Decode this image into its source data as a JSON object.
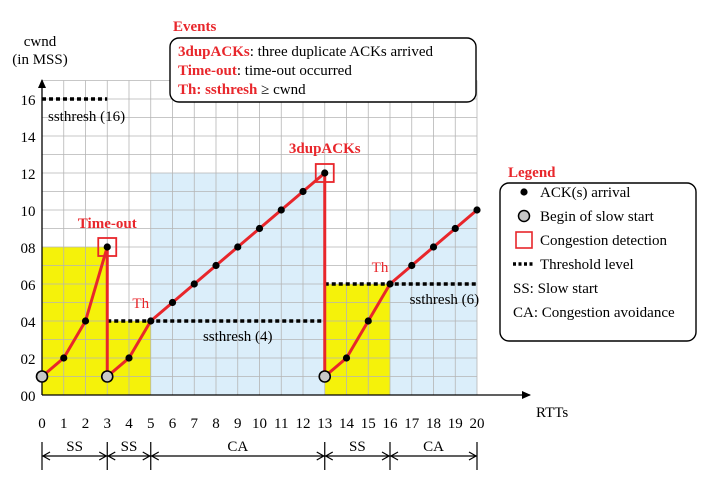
{
  "chart_data": {
    "type": "line",
    "ylabel_line1": "cwnd",
    "ylabel_line2": "(in MSS)",
    "xlabel": "RTTs",
    "x_ticks": [
      "0",
      "1",
      "2",
      "3",
      "4",
      "5",
      "6",
      "7",
      "8",
      "9",
      "10",
      "11",
      "12",
      "13",
      "14",
      "15",
      "16",
      "17",
      "18",
      "19",
      "20"
    ],
    "y_ticks": [
      {
        "label": "00",
        "value": 0
      },
      {
        "label": "02",
        "value": 2
      },
      {
        "label": "04",
        "value": 4
      },
      {
        "label": "06",
        "value": 6
      },
      {
        "label": "08",
        "value": 8
      },
      {
        "label": "10",
        "value": 10
      },
      {
        "label": "12",
        "value": 12
      },
      {
        "label": "14",
        "value": 14
      },
      {
        "label": "16",
        "value": 16
      }
    ],
    "xlim": [
      0,
      20
    ],
    "ylim": [
      0,
      17
    ],
    "grid": true,
    "cwnd_points": [
      [
        0,
        1
      ],
      [
        1,
        2
      ],
      [
        2,
        4
      ],
      [
        3,
        8
      ],
      [
        3,
        1
      ],
      [
        4,
        2
      ],
      [
        5,
        4
      ],
      [
        6,
        5
      ],
      [
        7,
        6
      ],
      [
        8,
        7
      ],
      [
        9,
        8
      ],
      [
        10,
        9
      ],
      [
        11,
        10
      ],
      [
        12,
        11
      ],
      [
        13,
        12
      ],
      [
        13,
        1
      ],
      [
        14,
        2
      ],
      [
        15,
        4
      ],
      [
        16,
        6
      ],
      [
        17,
        7
      ],
      [
        18,
        8
      ],
      [
        19,
        9
      ],
      [
        20,
        10
      ]
    ],
    "slow_start_begins": [
      [
        0,
        1
      ],
      [
        3,
        1
      ],
      [
        13,
        1
      ]
    ],
    "congestion_points": [
      [
        3,
        8
      ],
      [
        13,
        12
      ]
    ],
    "phase_regions": [
      {
        "kind": "SS",
        "x0": 0,
        "x1": 3,
        "y1": 8
      },
      {
        "kind": "SS",
        "x0": 3,
        "x1": 5,
        "y1": 4
      },
      {
        "kind": "CA",
        "x0": 5,
        "x1": 13,
        "y1": 12
      },
      {
        "kind": "SS",
        "x0": 13,
        "x1": 16,
        "y1": 6
      },
      {
        "kind": "CA",
        "x0": 16,
        "x1": 20,
        "y1": 10
      }
    ],
    "thresholds": [
      {
        "x0": 0,
        "x1": 3,
        "y": 16,
        "label": "ssthresh (16)"
      },
      {
        "x0": 3,
        "x1": 13,
        "y": 4,
        "label": "ssthresh (4)"
      },
      {
        "x0": 13,
        "x1": 20,
        "y": 6,
        "label": "ssthresh (6)"
      }
    ],
    "annotations": [
      {
        "text": "Time-out",
        "x": 3,
        "y": 8
      },
      {
        "text": "3dupACKs",
        "x": 13,
        "y": 12
      },
      {
        "text": "Th",
        "x": 5,
        "y": 4
      },
      {
        "text": "Th",
        "x": 16,
        "y": 6
      }
    ],
    "phases": [
      {
        "label": "SS",
        "x0": 0,
        "x1": 3
      },
      {
        "label": "SS",
        "x0": 3,
        "x1": 5
      },
      {
        "label": "CA",
        "x0": 5,
        "x1": 13
      },
      {
        "label": "SS",
        "x0": 13,
        "x1": 16
      },
      {
        "label": "CA",
        "x0": 16,
        "x1": 20
      }
    ]
  },
  "events": {
    "title": "Events",
    "items": [
      {
        "key": "3dupACKs",
        "text": ": three duplicate ACKs arrived"
      },
      {
        "key": "Time-out",
        "text": ": time-out occurred"
      },
      {
        "key": "Th: ssthresh",
        "text": " ≥  cwnd"
      }
    ]
  },
  "legend": {
    "title": "Legend",
    "items": [
      {
        "icon": "black-dot",
        "text": "ACK(s) arrival"
      },
      {
        "icon": "gray-circle",
        "text": "Begin of slow start"
      },
      {
        "icon": "red-square",
        "text": "Congestion detection"
      },
      {
        "icon": "dotted-line",
        "text": "Threshold level"
      },
      {
        "icon": "none",
        "text": "SS:  Slow start"
      },
      {
        "icon": "none",
        "text": "CA:  Congestion avoidance"
      }
    ]
  },
  "colors": {
    "line": "#e8262b",
    "ss_fill": "#f5f20a",
    "ca_fill": "#dbeefa",
    "grid": "#b5b5b5",
    "accent": "#e8262b",
    "dot": "#000000",
    "start_circle": "#c8c8c8"
  }
}
